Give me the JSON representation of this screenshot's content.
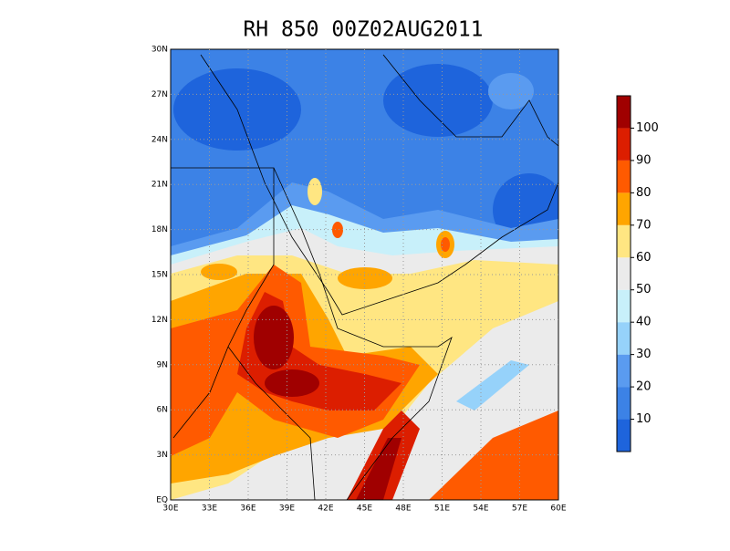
{
  "title": "RH 850 00Z02AUG2011",
  "map": {
    "x_labels": [
      "30E",
      "33E",
      "36E",
      "39E",
      "42E",
      "45E",
      "48E",
      "51E",
      "54E",
      "57E",
      "60E"
    ],
    "y_labels": [
      "EQ",
      "3N",
      "6N",
      "9N",
      "12N",
      "15N",
      "18N",
      "21N",
      "24N",
      "27N",
      "30N"
    ]
  },
  "colorbar": {
    "labels": [
      10,
      20,
      30,
      40,
      50,
      60,
      70,
      80,
      90,
      100
    ],
    "colors": [
      "#1e64dc",
      "#3c82e6",
      "#5a9bf0",
      "#96d2fa",
      "#c8f0fa",
      "#ebebeb",
      "#ffe682",
      "#ffa500",
      "#ff5a00",
      "#dc1e00",
      "#a00000"
    ]
  }
}
